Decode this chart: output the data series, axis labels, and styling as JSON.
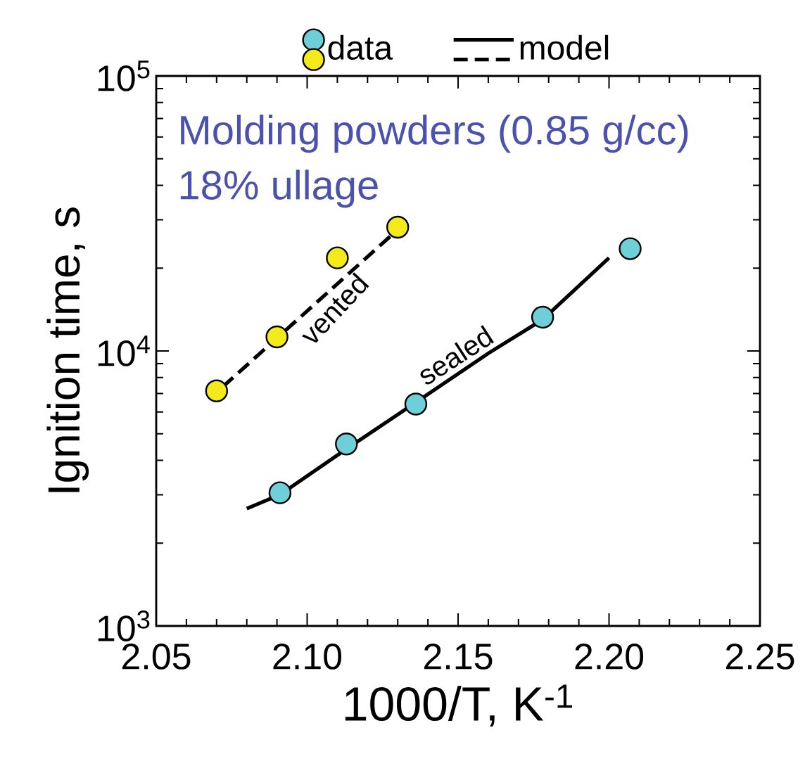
{
  "chart_data": {
    "type": "scatter",
    "xlabel": "1000/T, K$^{-1}$",
    "ylabel": "Ignition time, s",
    "xlim": [
      2.05,
      2.25
    ],
    "ylim": [
      1000,
      100000
    ],
    "log": "y",
    "xticks": [
      {
        "value": 2.05,
        "label": "2.05"
      },
      {
        "value": 2.1,
        "label": "2.10"
      },
      {
        "value": 2.15,
        "label": "2.15"
      },
      {
        "value": 2.2,
        "label": "2.20"
      },
      {
        "value": 2.25,
        "label": "2.25"
      }
    ],
    "yticks": [
      {
        "value": 1000,
        "label": "10$^{3}$"
      },
      {
        "value": 10000,
        "label": "10$^{4}$"
      },
      {
        "value": 100000,
        "label": "10$^{5}$"
      }
    ],
    "legend": "top",
    "marker": "circle",
    "series": [
      {
        "name": "data",
        "color": "#6fcfd8",
        "x": [
          2.091,
          2.113,
          2.136,
          2.178,
          2.207
        ],
        "values": [
          3050,
          4590,
          6410,
          13270,
          23540
        ]
      },
      {
        "color": "#f2ea1a",
        "x": [
          2.07,
          2.09,
          2.11,
          2.13
        ],
        "values": [
          7160,
          11250,
          21800,
          28200
        ]
      },
      {
        "name": "model",
        "type": "line",
        "line_style": "solid",
        "marker": "none",
        "color": "#000000",
        "x": [
          2.08,
          2.091,
          2.113,
          2.136,
          2.16,
          2.178,
          2.2
        ],
        "values": [
          2670,
          3000,
          4400,
          6500,
          9800,
          13000,
          21800
        ]
      },
      {
        "type": "line",
        "line_style": "dashed",
        "marker": "none",
        "color": "#000000",
        "x": [
          2.072,
          2.129
        ],
        "values": [
          7400,
          27000
        ]
      }
    ],
    "annotations": [
      "Molding powders (0.85 g/cc)",
      "18% ullage",
      {
        "text": "sealed",
        "x": 2.152,
        "y": 8600
      },
      {
        "text": "vented",
        "x": 2.105,
        "y": 15600
      }
    ]
  }
}
